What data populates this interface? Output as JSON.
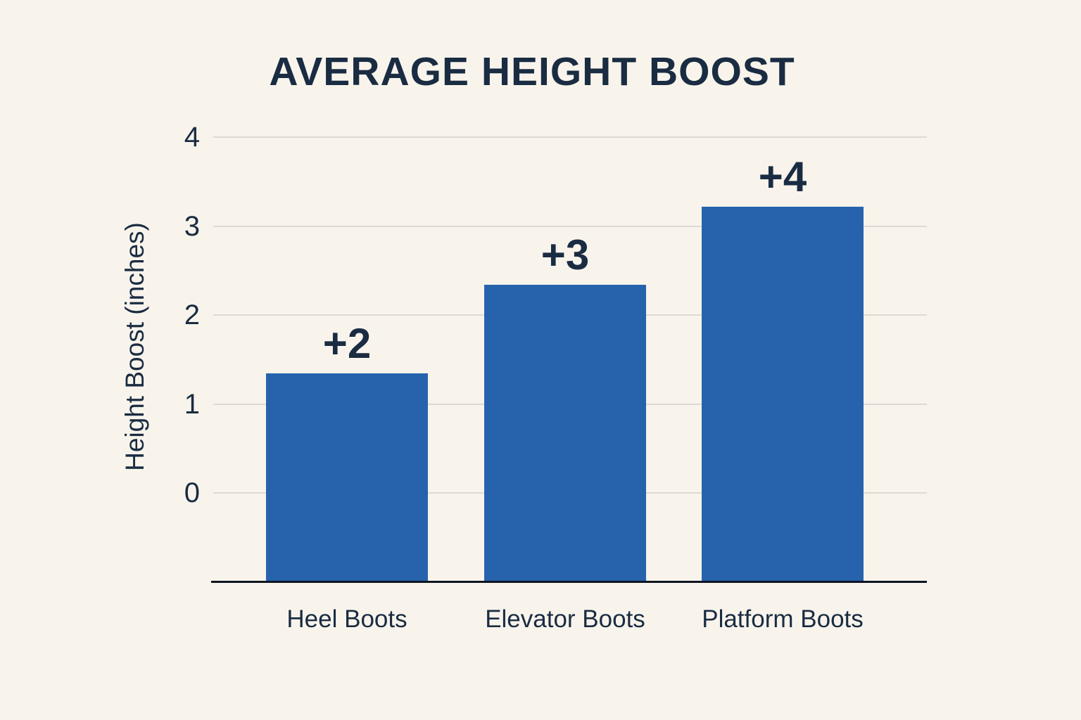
{
  "chart_data": {
    "type": "bar",
    "title": "AVERAGE HEIGHT BOOST",
    "ylabel": "Height Boost (inches)",
    "xlabel": "",
    "categories": [
      "Heel Boots",
      "Elevator Boots",
      "Platform Boots"
    ],
    "values": [
      2,
      3,
      4
    ],
    "value_labels": [
      "+2",
      "+3",
      "+4"
    ],
    "bar_drawn_heights_inches": [
      1.34,
      2.34,
      3.22
    ],
    "y_ticks": [
      4,
      3,
      2,
      1,
      0
    ],
    "ylim": [
      -1,
      4.5
    ],
    "grid": "horizontal-only",
    "legend": "none",
    "colors": {
      "background": "#f8f4ec",
      "bar": "#2763ad",
      "text": "#1a2c42",
      "gridline": "#dedad3",
      "axis_line": "#0c1422"
    }
  }
}
